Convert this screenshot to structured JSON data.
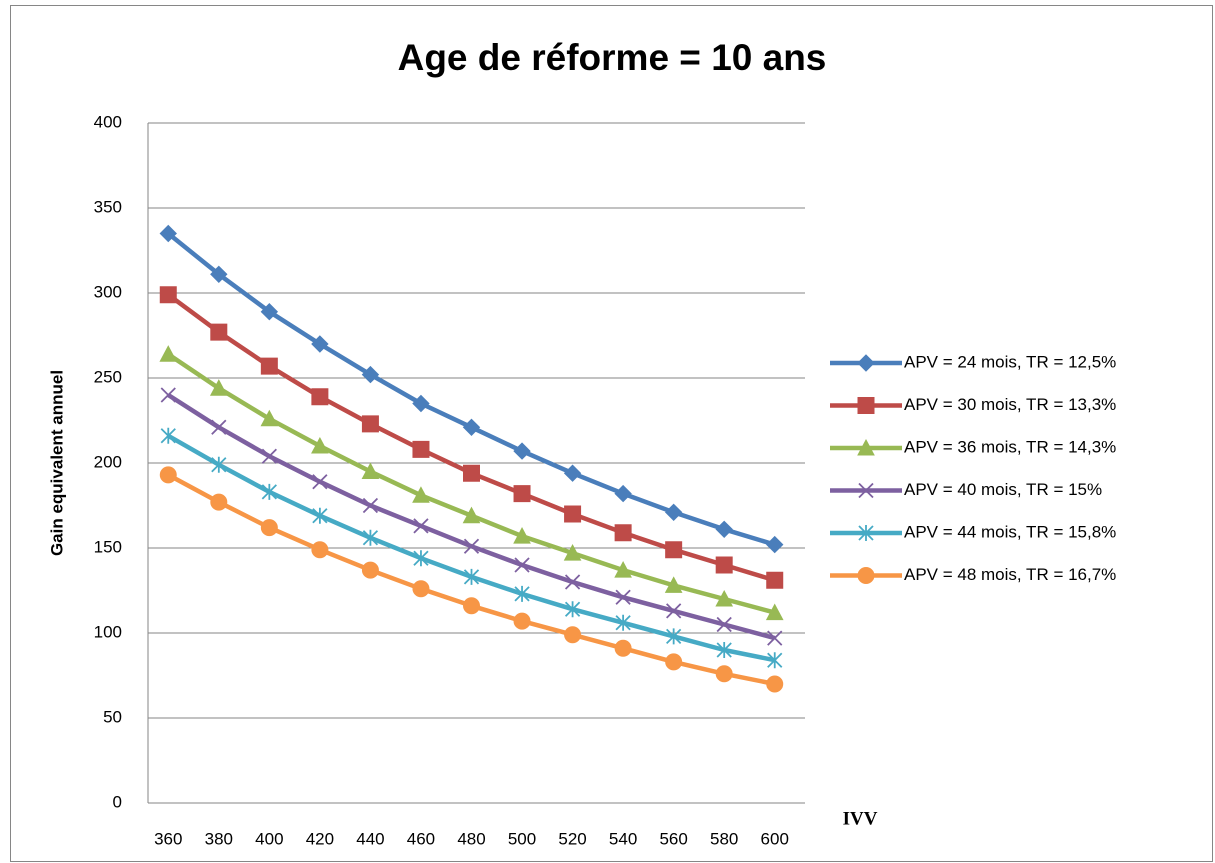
{
  "chart_data": {
    "type": "line",
    "title": "Age de réforme = 10 ans",
    "xlabel": "IVV",
    "ylabel": "Gain equivalent annuel",
    "categories": [
      "360",
      "380",
      "400",
      "420",
      "440",
      "460",
      "480",
      "500",
      "520",
      "540",
      "560",
      "580",
      "600"
    ],
    "ylim": [
      0,
      400
    ],
    "yticks": [
      0,
      50,
      100,
      150,
      200,
      250,
      300,
      350,
      400
    ],
    "grid": true,
    "legend": "right",
    "series": [
      {
        "name": "APV = 24 mois, TR = 12,5%",
        "color": "#4a7ebb",
        "marker": "diamond",
        "values": [
          335,
          311,
          289,
          270,
          252,
          235,
          221,
          207,
          194,
          182,
          171,
          161,
          152
        ]
      },
      {
        "name": "APV = 30 mois, TR = 13,3%",
        "color": "#be4b48",
        "marker": "square",
        "values": [
          299,
          277,
          257,
          239,
          223,
          208,
          194,
          182,
          170,
          159,
          149,
          140,
          131
        ]
      },
      {
        "name": "APV = 36 mois, TR = 14,3%",
        "color": "#98b954",
        "marker": "triangle",
        "values": [
          264,
          244,
          226,
          210,
          195,
          181,
          169,
          157,
          147,
          137,
          128,
          120,
          112
        ]
      },
      {
        "name": "APV = 40 mois, TR = 15%",
        "color": "#7d60a0",
        "marker": "x",
        "values": [
          240,
          221,
          204,
          189,
          175,
          163,
          151,
          140,
          130,
          121,
          113,
          105,
          97
        ]
      },
      {
        "name": "APV = 44 mois, TR = 15,8%",
        "color": "#46aac5",
        "marker": "star",
        "values": [
          216,
          199,
          183,
          169,
          156,
          144,
          133,
          123,
          114,
          106,
          98,
          90,
          84
        ]
      },
      {
        "name": "APV = 48 mois, TR = 16,7%",
        "color": "#f79646",
        "marker": "circle",
        "values": [
          193,
          177,
          162,
          149,
          137,
          126,
          116,
          107,
          99,
          91,
          83,
          76,
          70
        ]
      }
    ]
  }
}
